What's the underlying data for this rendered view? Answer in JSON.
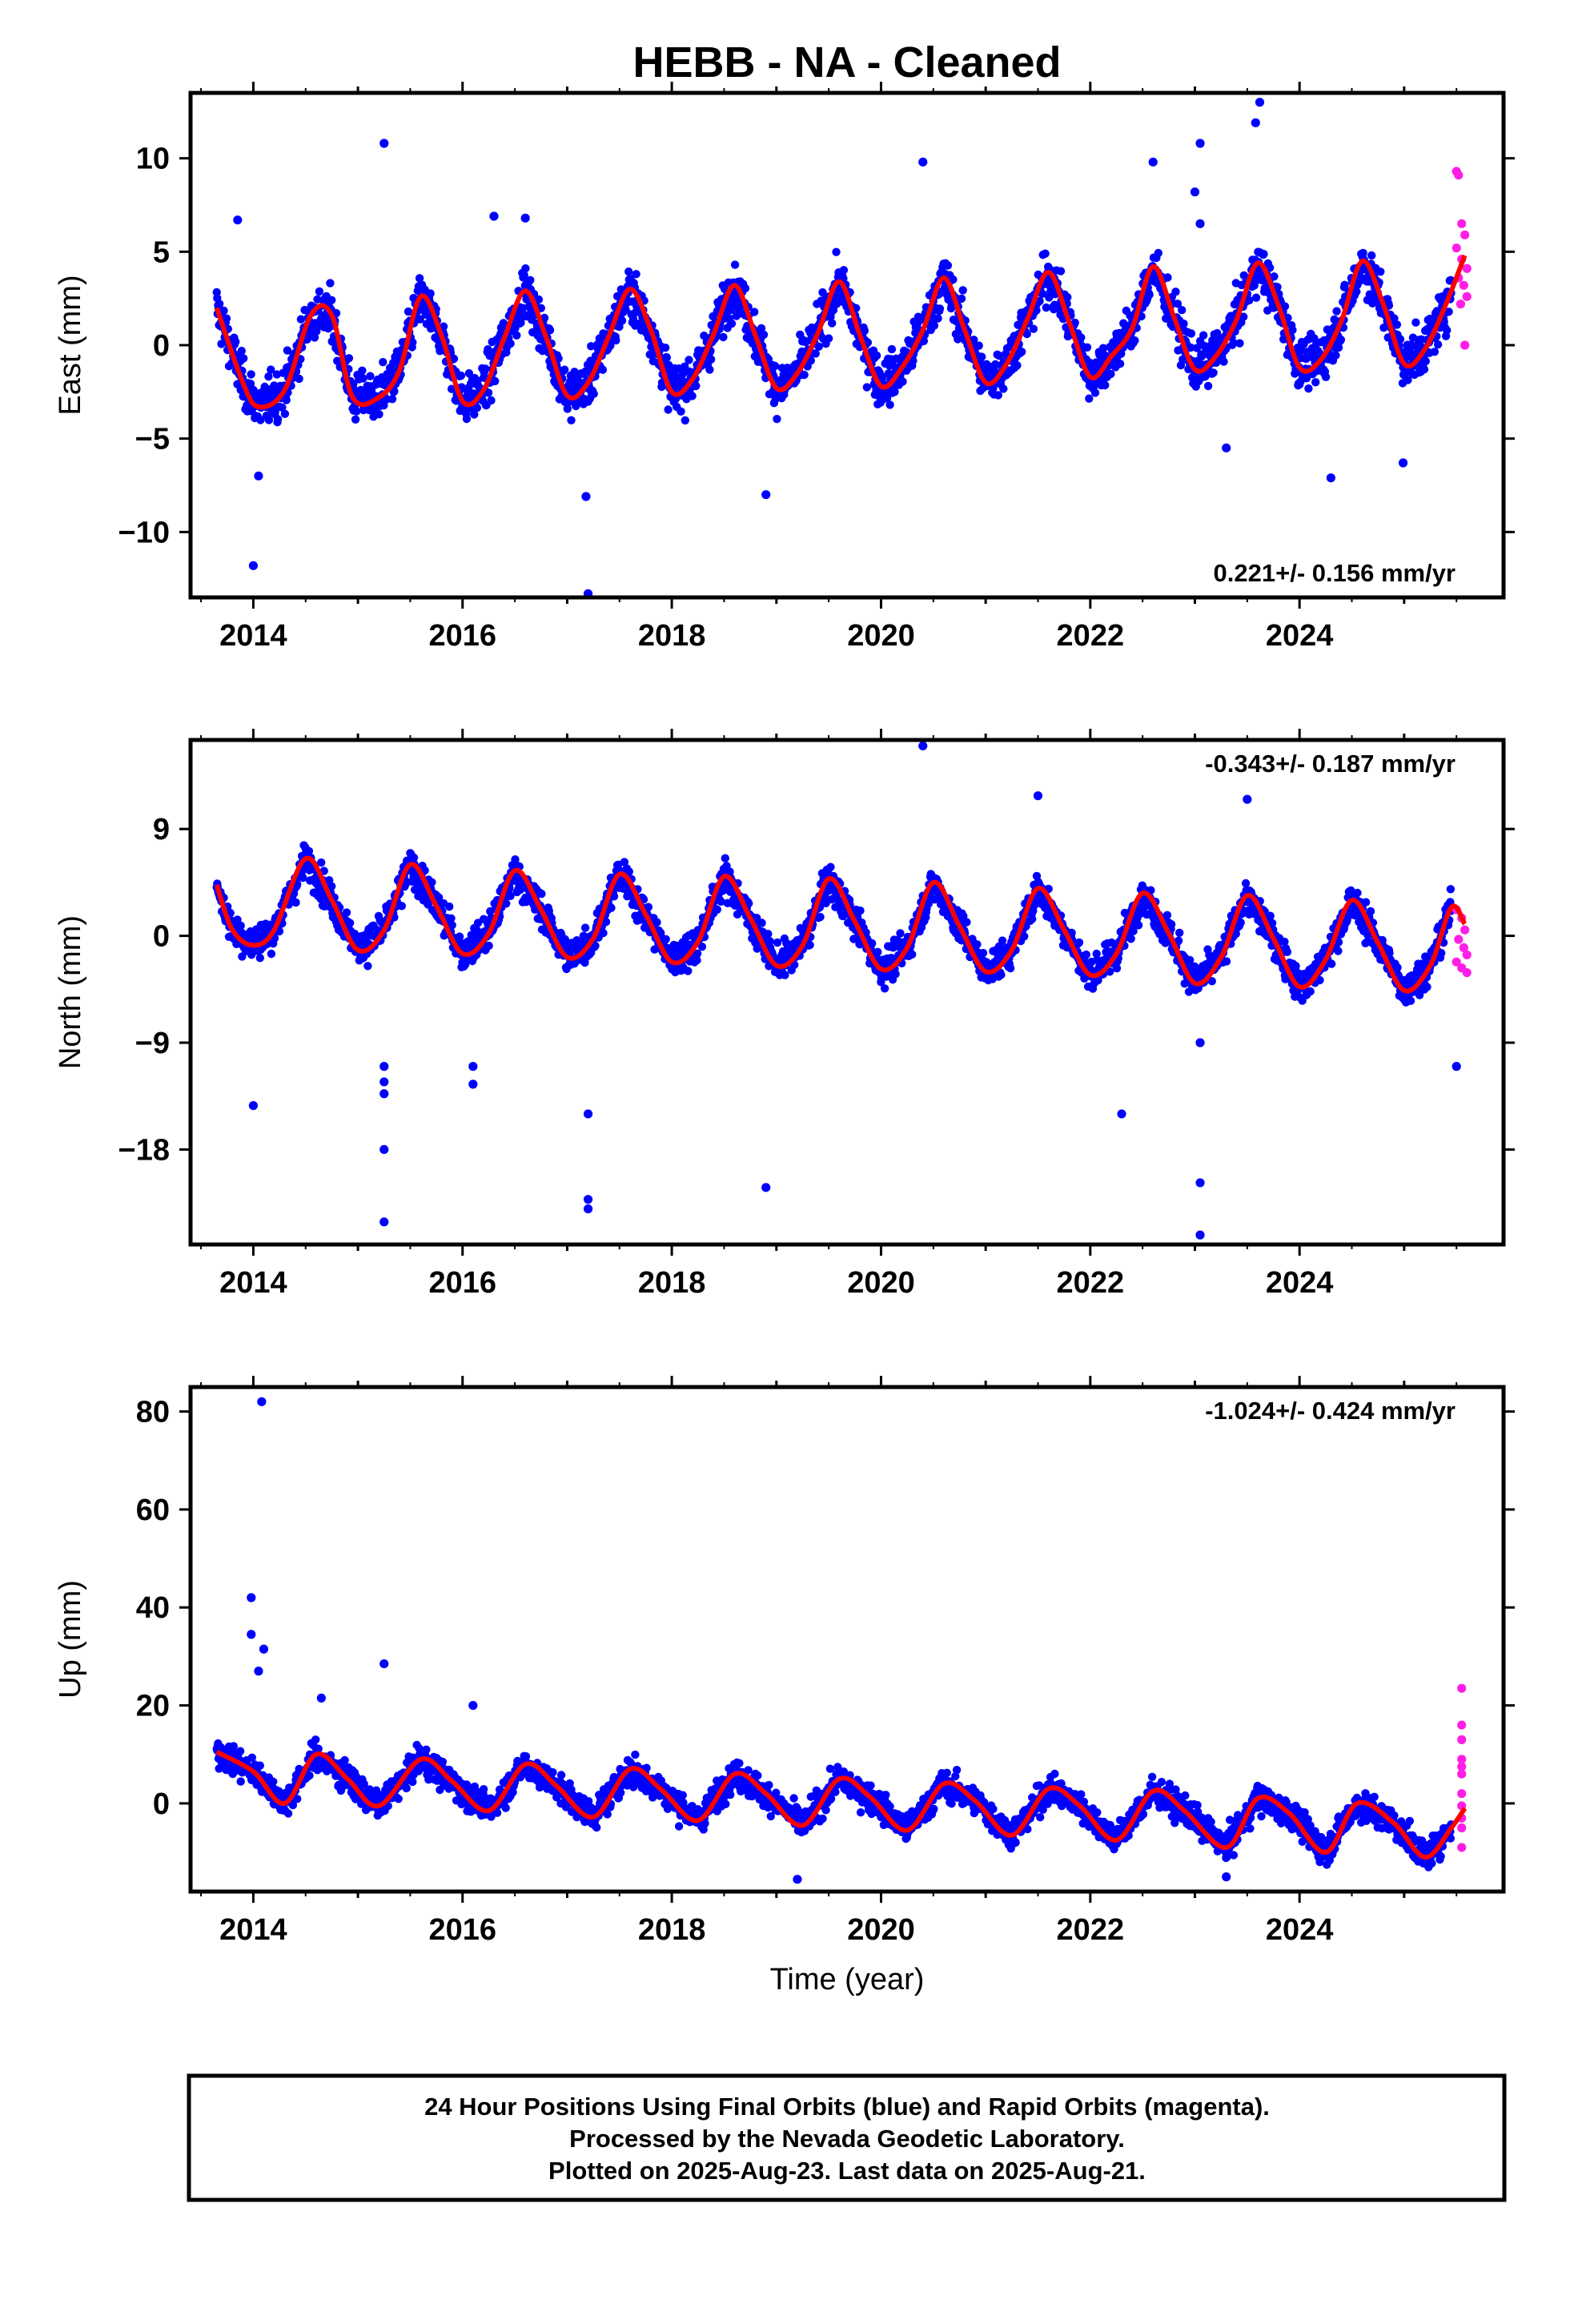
{
  "title": "HEBB  - NA - Cleaned",
  "xlabel": "Time (year)",
  "footer": [
    "24 Hour Positions Using Final Orbits (blue) and Rapid Orbits (magenta).",
    "Processed by the Nevada Geodetic Laboratory.",
    "Plotted on 2025-Aug-23. Last data on 2025-Aug-21."
  ],
  "colors": {
    "final_orbits": "#0000ff",
    "rapid_orbits": "#ff1ee6",
    "model_fit": "#ff0000",
    "frame": "#000000"
  },
  "chart_data": [
    {
      "type": "scatter",
      "panel": "east",
      "ylabel": "East (mm)",
      "rate_label": "0.221+/- 0.156 mm/yr",
      "rate_position": "bottom-right",
      "xlim": [
        2013.4,
        2025.95
      ],
      "ylim": [
        -13.5,
        13.5
      ],
      "xticks": [
        2014,
        2016,
        2018,
        2020,
        2022,
        2024
      ],
      "xtick_labels": [
        "2014",
        "2016",
        "2018",
        "2020",
        "2022",
        "2024"
      ],
      "yticks": [
        -10,
        -5,
        0,
        5,
        10
      ],
      "ytick_labels": [
        "−10",
        "−5",
        "0",
        "5",
        "10"
      ],
      "grid": false,
      "fit_curve": {
        "name": "model fit",
        "x": [
          2013.65,
          2013.9,
          2014.05,
          2014.3,
          2014.55,
          2014.75,
          2014.95,
          2015.2,
          2015.4,
          2015.6,
          2015.8,
          2016.0,
          2016.2,
          2016.4,
          2016.6,
          2016.8,
          2017.0,
          2017.2,
          2017.4,
          2017.6,
          2017.8,
          2018.0,
          2018.2,
          2018.4,
          2018.6,
          2018.8,
          2019.0,
          2019.2,
          2019.4,
          2019.6,
          2019.8,
          2020.0,
          2020.2,
          2020.4,
          2020.6,
          2020.8,
          2021.0,
          2021.2,
          2021.4,
          2021.6,
          2021.8,
          2022.0,
          2022.2,
          2022.4,
          2022.6,
          2022.8,
          2023.0,
          2023.2,
          2023.4,
          2023.6,
          2023.8,
          2024.0,
          2024.2,
          2024.4,
          2024.6,
          2024.8,
          2025.0,
          2025.2,
          2025.4,
          2025.58
        ],
        "y": [
          2.0,
          -2.0,
          -3.3,
          -2.4,
          1.6,
          1.6,
          -2.8,
          -2.8,
          -1.3,
          2.6,
          0.5,
          -3.0,
          -2.4,
          0.4,
          2.9,
          0.4,
          -2.7,
          -2.0,
          0.5,
          3.0,
          0.8,
          -2.5,
          -1.8,
          0.6,
          3.2,
          0.5,
          -2.3,
          -1.5,
          0.7,
          3.4,
          0.5,
          -2.2,
          -1.2,
          0.8,
          3.6,
          0.8,
          -2.0,
          -1.0,
          1.4,
          3.9,
          1.2,
          -1.7,
          -0.6,
          0.9,
          4.2,
          1.5,
          -1.3,
          -0.6,
          1.4,
          4.4,
          2.1,
          -1.2,
          -0.8,
          1.3,
          4.5,
          2.2,
          -1.0,
          -0.2,
          2.2,
          4.8
        ]
      },
      "outliers": [
        {
          "x": 2014.0,
          "y": -11.8
        },
        {
          "x": 2015.25,
          "y": 10.8
        },
        {
          "x": 2017.2,
          "y": -13.3
        },
        {
          "x": 2017.18,
          "y": -8.1
        },
        {
          "x": 2020.4,
          "y": 9.8
        },
        {
          "x": 2022.6,
          "y": 9.8
        },
        {
          "x": 2023.05,
          "y": 10.8
        },
        {
          "x": 2023.05,
          "y": 6.5
        },
        {
          "x": 2023.0,
          "y": 8.2
        },
        {
          "x": 2023.62,
          "y": 13.0
        },
        {
          "x": 2023.58,
          "y": 11.9
        },
        {
          "x": 2023.3,
          "y": -5.5
        },
        {
          "x": 2024.3,
          "y": -7.1
        },
        {
          "x": 2024.99,
          "y": -6.3
        },
        {
          "x": 2013.85,
          "y": 6.7
        },
        {
          "x": 2014.05,
          "y": -7.0
        },
        {
          "x": 2016.3,
          "y": 6.9
        },
        {
          "x": 2016.6,
          "y": 6.8
        },
        {
          "x": 2018.9,
          "y": -8.0
        }
      ],
      "rapid_orbits": [
        {
          "x": 2025.5,
          "y": 9.3
        },
        {
          "x": 2025.52,
          "y": 9.1
        },
        {
          "x": 2025.55,
          "y": 6.5
        },
        {
          "x": 2025.58,
          "y": 5.9
        },
        {
          "x": 2025.5,
          "y": 5.2
        },
        {
          "x": 2025.55,
          "y": 4.6
        },
        {
          "x": 2025.6,
          "y": 4.1
        },
        {
          "x": 2025.52,
          "y": 3.6
        },
        {
          "x": 2025.57,
          "y": 3.2
        },
        {
          "x": 2025.6,
          "y": 2.6
        },
        {
          "x": 2025.54,
          "y": 2.2
        },
        {
          "x": 2025.58,
          "y": 0.0
        }
      ]
    },
    {
      "type": "scatter",
      "panel": "north",
      "ylabel": "North (mm)",
      "rate_label": "-0.343+/- 0.187 mm/yr",
      "rate_position": "top-right",
      "xlim": [
        2013.4,
        2025.95
      ],
      "ylim": [
        -26,
        16.5
      ],
      "xticks": [
        2014,
        2016,
        2018,
        2020,
        2022,
        2024
      ],
      "xtick_labels": [
        "2014",
        "2016",
        "2018",
        "2020",
        "2022",
        "2024"
      ],
      "yticks": [
        -18,
        -9,
        0,
        9
      ],
      "ytick_labels": [
        "−18",
        "−9",
        "0",
        "9"
      ],
      "grid": false,
      "fit_curve": {
        "name": "model fit",
        "x": [
          2013.65,
          2013.8,
          2014.0,
          2014.2,
          2014.5,
          2014.75,
          2015.0,
          2015.25,
          2015.5,
          2015.75,
          2016.0,
          2016.25,
          2016.5,
          2016.75,
          2017.0,
          2017.25,
          2017.5,
          2017.75,
          2018.0,
          2018.25,
          2018.5,
          2018.75,
          2019.0,
          2019.25,
          2019.5,
          2019.75,
          2020.0,
          2020.25,
          2020.5,
          2020.75,
          2021.0,
          2021.25,
          2021.5,
          2021.75,
          2022.0,
          2022.25,
          2022.5,
          2022.75,
          2023.0,
          2023.25,
          2023.5,
          2023.75,
          2024.0,
          2024.25,
          2024.5,
          2024.75,
          2025.0,
          2025.25,
          2025.45,
          2025.58
        ],
        "y": [
          4.3,
          0.5,
          -0.8,
          0.5,
          6.5,
          3.0,
          -1.2,
          0.5,
          6.0,
          2.5,
          -1.5,
          0.2,
          5.5,
          2.2,
          -1.8,
          -0.2,
          5.2,
          1.8,
          -2.2,
          -0.5,
          5.0,
          1.5,
          -2.5,
          -0.8,
          4.8,
          1.2,
          -2.8,
          -1.0,
          4.5,
          0.8,
          -3.0,
          -1.2,
          4.0,
          0.5,
          -3.3,
          -1.5,
          3.6,
          0.2,
          -4.0,
          -1.8,
          3.4,
          -0.2,
          -4.3,
          -2.0,
          3.0,
          -0.6,
          -4.6,
          -2.5,
          2.4,
          1.0
        ]
      },
      "outliers": [
        {
          "x": 2014.0,
          "y": -14.3
        },
        {
          "x": 2015.25,
          "y": -24.1
        },
        {
          "x": 2015.25,
          "y": -18.0
        },
        {
          "x": 2015.25,
          "y": -12.3
        },
        {
          "x": 2015.25,
          "y": -13.3
        },
        {
          "x": 2015.25,
          "y": -11.0
        },
        {
          "x": 2016.1,
          "y": -12.5
        },
        {
          "x": 2016.1,
          "y": -11.0
        },
        {
          "x": 2017.2,
          "y": -15.0
        },
        {
          "x": 2017.2,
          "y": -23.0
        },
        {
          "x": 2017.2,
          "y": -22.2
        },
        {
          "x": 2018.9,
          "y": -21.2
        },
        {
          "x": 2020.4,
          "y": 16.0
        },
        {
          "x": 2021.5,
          "y": 11.8
        },
        {
          "x": 2022.3,
          "y": -15.0
        },
        {
          "x": 2023.05,
          "y": -20.8
        },
        {
          "x": 2023.05,
          "y": -25.2
        },
        {
          "x": 2023.05,
          "y": -9.0
        },
        {
          "x": 2023.5,
          "y": 11.5
        },
        {
          "x": 2025.5,
          "y": -11.0
        }
      ],
      "rapid_orbits": [
        {
          "x": 2025.5,
          "y": 2.2
        },
        {
          "x": 2025.55,
          "y": 1.5
        },
        {
          "x": 2025.58,
          "y": 0.5
        },
        {
          "x": 2025.52,
          "y": -0.3
        },
        {
          "x": 2025.57,
          "y": -1.0
        },
        {
          "x": 2025.6,
          "y": -1.6
        },
        {
          "x": 2025.5,
          "y": -2.2
        },
        {
          "x": 2025.55,
          "y": -2.7
        },
        {
          "x": 2025.6,
          "y": -3.1
        }
      ]
    },
    {
      "type": "scatter",
      "panel": "up",
      "ylabel": "Up (mm)",
      "rate_label": "-1.024+/- 0.424 mm/yr",
      "rate_position": "top-right",
      "xlim": [
        2013.4,
        2025.95
      ],
      "ylim": [
        -18,
        85
      ],
      "xticks": [
        2014,
        2016,
        2018,
        2020,
        2022,
        2024
      ],
      "xtick_labels": [
        "2014",
        "2016",
        "2018",
        "2020",
        "2022",
        "2024"
      ],
      "yticks": [
        0,
        20,
        40,
        60,
        80
      ],
      "ytick_labels": [
        "0",
        "20",
        "40",
        "60",
        "80"
      ],
      "grid": false,
      "fit_curve": {
        "name": "model fit",
        "x": [
          2013.65,
          2014.0,
          2014.3,
          2014.6,
          2014.9,
          2015.2,
          2015.6,
          2015.9,
          2016.25,
          2016.6,
          2016.9,
          2017.25,
          2017.6,
          2017.9,
          2018.25,
          2018.6,
          2018.9,
          2019.25,
          2019.6,
          2019.9,
          2020.25,
          2020.6,
          2020.9,
          2021.25,
          2021.6,
          2021.9,
          2022.25,
          2022.6,
          2022.9,
          2023.3,
          2023.6,
          2023.9,
          2024.25,
          2024.55,
          2024.9,
          2025.2,
          2025.45,
          2025.58
        ],
        "y": [
          10.5,
          6.5,
          0.0,
          10.0,
          5.0,
          -0.5,
          9.0,
          4.5,
          -1.5,
          8.0,
          3.5,
          -2.8,
          7.0,
          2.8,
          -3.5,
          6.0,
          2.0,
          -4.5,
          5.0,
          1.2,
          -5.5,
          4.0,
          0.5,
          -6.5,
          3.0,
          -0.5,
          -7.5,
          2.5,
          -1.5,
          -9.0,
          1.0,
          -2.0,
          -10.0,
          0.0,
          -4.0,
          -11.0,
          -5.0,
          -1.0
        ]
      },
      "outliers": [
        {
          "x": 2014.08,
          "y": 82.0
        },
        {
          "x": 2013.98,
          "y": 42.0
        },
        {
          "x": 2013.98,
          "y": 34.5
        },
        {
          "x": 2014.1,
          "y": 31.5
        },
        {
          "x": 2014.05,
          "y": 27.0
        },
        {
          "x": 2015.25,
          "y": 28.5
        },
        {
          "x": 2016.1,
          "y": 20.0
        },
        {
          "x": 2014.65,
          "y": 21.5
        },
        {
          "x": 2019.2,
          "y": -15.5
        },
        {
          "x": 2023.3,
          "y": -15.0
        }
      ],
      "rapid_orbits": [
        {
          "x": 2025.55,
          "y": 23.5
        },
        {
          "x": 2025.55,
          "y": 16.0
        },
        {
          "x": 2025.55,
          "y": 13.0
        },
        {
          "x": 2025.55,
          "y": 9.0
        },
        {
          "x": 2025.55,
          "y": 7.5
        },
        {
          "x": 2025.55,
          "y": 6.0
        },
        {
          "x": 2025.55,
          "y": 2.0
        },
        {
          "x": 2025.55,
          "y": -0.5
        },
        {
          "x": 2025.55,
          "y": -3.0
        },
        {
          "x": 2025.55,
          "y": -5.0
        },
        {
          "x": 2025.55,
          "y": -9.0
        }
      ]
    }
  ]
}
